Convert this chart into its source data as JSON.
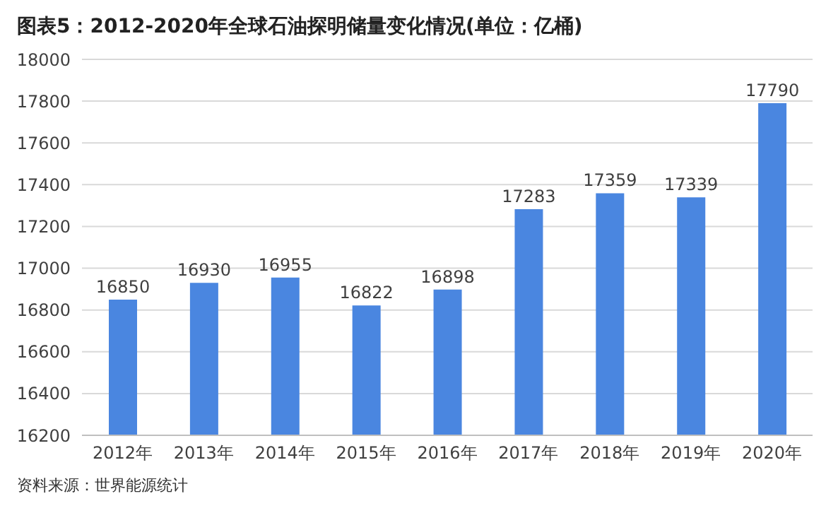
{
  "chart_data": {
    "type": "bar",
    "title": "图表5：2012-2020年全球石油探明储量变化情况(单位：亿桶)",
    "categories": [
      "2012年",
      "2013年",
      "2014年",
      "2015年",
      "2016年",
      "2017年",
      "2018年",
      "2019年",
      "2020年"
    ],
    "values": [
      16850,
      16930,
      16955,
      16822,
      16898,
      17283,
      17359,
      17339,
      17790
    ],
    "color": "#4a86e0",
    "ylim": [
      16200,
      18000
    ],
    "yticks": [
      16200,
      16400,
      16600,
      16800,
      17000,
      17200,
      17400,
      17600,
      17800,
      18000
    ],
    "grid": "y",
    "data_labels": true,
    "annotations": [
      "资料来源：世界能源统计"
    ]
  }
}
